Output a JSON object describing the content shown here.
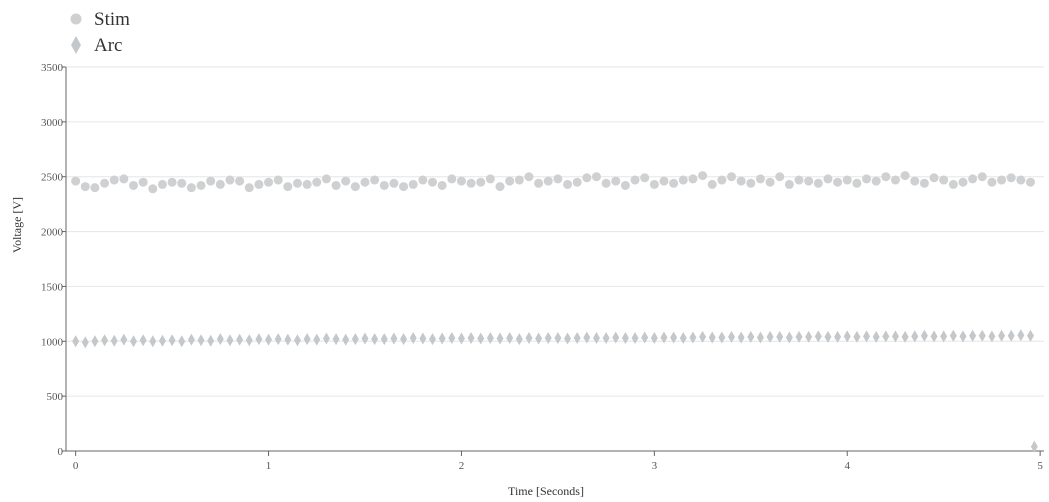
{
  "chart_data": {
    "type": "scatter",
    "title": "",
    "xlabel": "Time [Seconds]",
    "ylabel": "Voltage [V]",
    "xlim": [
      -0.05,
      5.02
    ],
    "ylim": [
      0,
      3500
    ],
    "xticks": [
      0,
      1,
      2,
      3,
      4,
      5
    ],
    "xtick_labels": [
      "0",
      "1",
      "2",
      "3",
      "4",
      "5"
    ],
    "yticks": [
      0,
      500,
      1000,
      1500,
      2000,
      2500,
      3000,
      3500
    ],
    "ytick_labels": [
      "0",
      "500",
      "1000",
      "1500",
      "2000",
      "2500",
      "3000",
      "3500"
    ],
    "grid": "horizontal",
    "legend": "top-left",
    "series": [
      {
        "name": "Stim",
        "marker": "circle",
        "color": "#cfd0d2",
        "x": [
          0,
          0.05,
          0.1,
          0.15,
          0.2,
          0.25,
          0.3,
          0.35,
          0.4,
          0.45,
          0.5,
          0.55,
          0.6,
          0.65,
          0.7,
          0.75,
          0.8,
          0.85,
          0.9,
          0.95,
          1,
          1.05,
          1.1,
          1.15,
          1.2,
          1.25,
          1.3,
          1.35,
          1.4,
          1.45,
          1.5,
          1.55,
          1.6,
          1.65,
          1.7,
          1.75,
          1.8,
          1.85,
          1.9,
          1.95,
          2,
          2.05,
          2.1,
          2.15,
          2.2,
          2.25,
          2.3,
          2.35,
          2.4,
          2.45,
          2.5,
          2.55,
          2.6,
          2.65,
          2.7,
          2.75,
          2.8,
          2.85,
          2.9,
          2.95,
          3,
          3.05,
          3.1,
          3.15,
          3.2,
          3.25,
          3.3,
          3.35,
          3.4,
          3.45,
          3.5,
          3.55,
          3.6,
          3.65,
          3.7,
          3.75,
          3.8,
          3.85,
          3.9,
          3.95,
          4,
          4.05,
          4.1,
          4.15,
          4.2,
          4.25,
          4.3,
          4.35,
          4.4,
          4.45,
          4.5,
          4.55,
          4.6,
          4.65,
          4.7,
          4.75,
          4.8,
          4.85,
          4.9,
          4.95
        ],
        "y": [
          2460,
          2410,
          2400,
          2440,
          2470,
          2480,
          2420,
          2450,
          2390,
          2430,
          2450,
          2440,
          2400,
          2420,
          2460,
          2430,
          2470,
          2460,
          2400,
          2430,
          2450,
          2470,
          2410,
          2440,
          2430,
          2450,
          2480,
          2420,
          2460,
          2410,
          2450,
          2470,
          2420,
          2440,
          2410,
          2430,
          2470,
          2450,
          2420,
          2480,
          2460,
          2440,
          2450,
          2480,
          2410,
          2460,
          2470,
          2500,
          2440,
          2460,
          2480,
          2430,
          2450,
          2490,
          2500,
          2440,
          2460,
          2420,
          2470,
          2490,
          2430,
          2460,
          2440,
          2470,
          2480,
          2510,
          2430,
          2470,
          2500,
          2460,
          2440,
          2480,
          2450,
          2500,
          2430,
          2470,
          2460,
          2440,
          2480,
          2450,
          2470,
          2440,
          2480,
          2460,
          2500,
          2470,
          2510,
          2460,
          2440,
          2490,
          2470,
          2430,
          2450,
          2480,
          2500,
          2450,
          2470,
          2490,
          2470,
          2450
        ]
      },
      {
        "name": "Arc",
        "marker": "diamond",
        "color": "#c5c8cb",
        "x": [
          0,
          0.05,
          0.1,
          0.15,
          0.2,
          0.25,
          0.3,
          0.35,
          0.4,
          0.45,
          0.5,
          0.55,
          0.6,
          0.65,
          0.7,
          0.75,
          0.8,
          0.85,
          0.9,
          0.95,
          1,
          1.05,
          1.1,
          1.15,
          1.2,
          1.25,
          1.3,
          1.35,
          1.4,
          1.45,
          1.5,
          1.55,
          1.6,
          1.65,
          1.7,
          1.75,
          1.8,
          1.85,
          1.9,
          1.95,
          2,
          2.05,
          2.1,
          2.15,
          2.2,
          2.25,
          2.3,
          2.35,
          2.4,
          2.45,
          2.5,
          2.55,
          2.6,
          2.65,
          2.7,
          2.75,
          2.8,
          2.85,
          2.9,
          2.95,
          3,
          3.05,
          3.1,
          3.15,
          3.2,
          3.25,
          3.3,
          3.35,
          3.4,
          3.45,
          3.5,
          3.55,
          3.6,
          3.65,
          3.7,
          3.75,
          3.8,
          3.85,
          3.9,
          3.95,
          4,
          4.05,
          4.1,
          4.15,
          4.2,
          4.25,
          4.3,
          4.35,
          4.4,
          4.45,
          4.5,
          4.55,
          4.6,
          4.65,
          4.7,
          4.75,
          4.8,
          4.85,
          4.9,
          4.95,
          4.97
        ],
        "y": [
          1000,
          990,
          1000,
          1010,
          1005,
          1015,
          1000,
          1010,
          1000,
          1005,
          1010,
          1000,
          1015,
          1010,
          1005,
          1020,
          1010,
          1015,
          1010,
          1020,
          1015,
          1020,
          1015,
          1010,
          1020,
          1015,
          1025,
          1020,
          1015,
          1020,
          1025,
          1020,
          1020,
          1025,
          1020,
          1030,
          1025,
          1020,
          1025,
          1030,
          1025,
          1030,
          1025,
          1030,
          1025,
          1030,
          1020,
          1030,
          1025,
          1030,
          1030,
          1025,
          1030,
          1035,
          1030,
          1030,
          1035,
          1030,
          1030,
          1035,
          1030,
          1035,
          1035,
          1030,
          1035,
          1040,
          1035,
          1035,
          1040,
          1035,
          1040,
          1035,
          1040,
          1040,
          1035,
          1040,
          1040,
          1045,
          1040,
          1040,
          1045,
          1040,
          1045,
          1040,
          1045,
          1045,
          1040,
          1045,
          1050,
          1045,
          1045,
          1050,
          1045,
          1050,
          1050,
          1045,
          1050,
          1050,
          1055,
          1050,
          40
        ]
      }
    ]
  }
}
